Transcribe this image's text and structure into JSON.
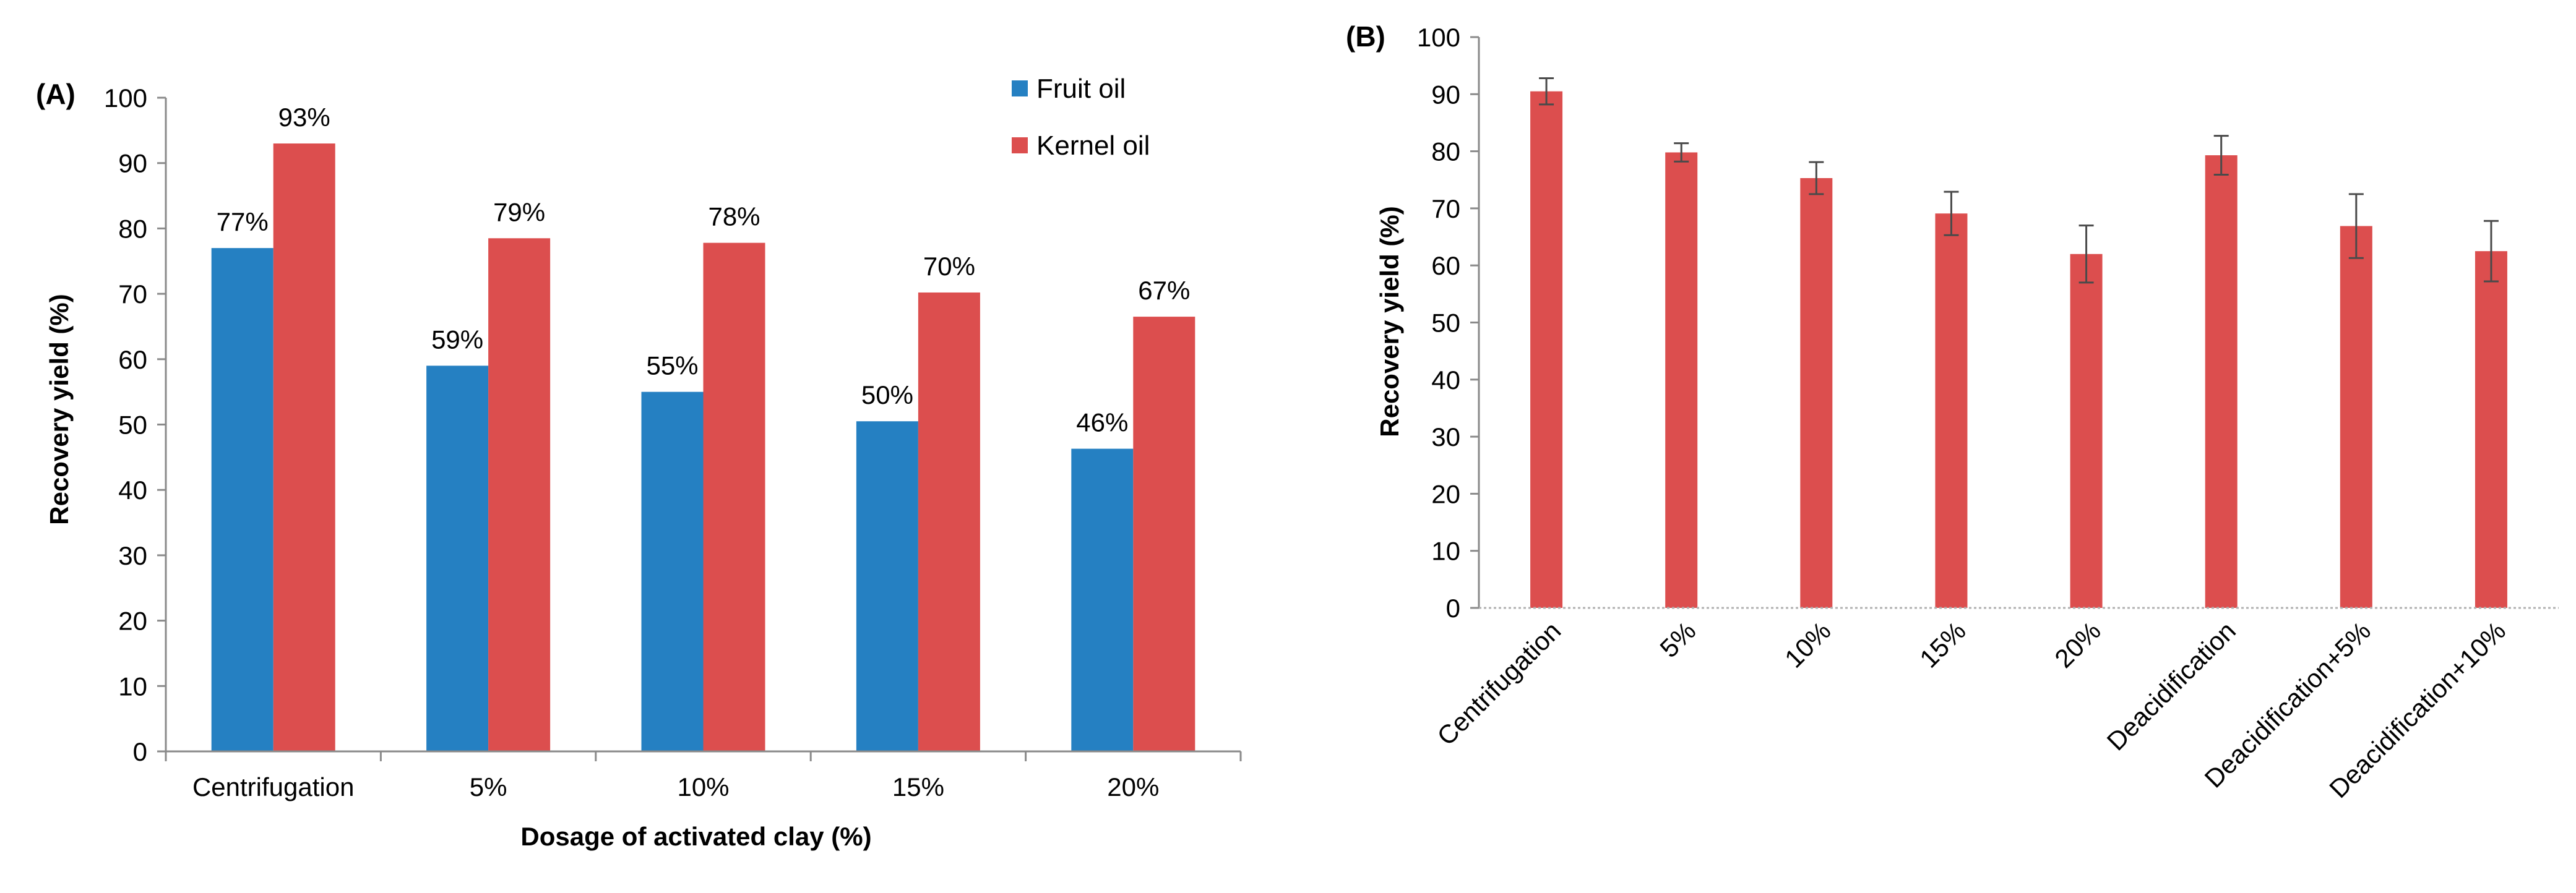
{
  "chart_data": [
    {
      "panel_label": "(A)",
      "type": "bar",
      "categories": [
        "Centrifugation",
        "5%",
        "10%",
        "15%",
        "20%"
      ],
      "series": [
        {
          "name": "Fruit oil",
          "color": "#2580C2",
          "values": [
            77,
            59,
            55,
            50.5,
            46.3
          ],
          "labels": [
            "77%",
            "59%",
            "55%",
            "50%",
            "46%"
          ]
        },
        {
          "name": "Kernel oil",
          "color": "#DC4E4E",
          "values": [
            93,
            78.5,
            77.8,
            70.2,
            66.5
          ],
          "labels": [
            "93%",
            "79%",
            "78%",
            "70%",
            "67%"
          ]
        }
      ],
      "xlabel": "Dosage of activated clay (%)",
      "ylabel": "Recovery yield (%)",
      "ylim": [
        0,
        100
      ],
      "yticks": [
        "0",
        "10",
        "20",
        "30",
        "40",
        "50",
        "60",
        "70",
        "80",
        "90",
        "100"
      ],
      "legend": "top-right",
      "grid": false
    },
    {
      "panel_label": "(B)",
      "type": "bar",
      "categories": [
        "Centrifugation",
        "5%",
        "10%",
        "15%",
        "20%",
        "Deacidification",
        "Deacidification+5%",
        "Deacidification+10%"
      ],
      "series": [
        {
          "name": "Recovery yield",
          "color": "#DC4E4E",
          "values": [
            90.5,
            79.8,
            75.3,
            69.1,
            62,
            79.3,
            66.9,
            62.5
          ],
          "errors": [
            2.3,
            1.6,
            2.8,
            3.8,
            5,
            3.4,
            5.6,
            5.3
          ]
        }
      ],
      "xlabel": "",
      "ylabel": "Recovery yield (%)",
      "ylim": [
        0,
        100
      ],
      "yticks": [
        "0",
        "10",
        "20",
        "30",
        "40",
        "50",
        "60",
        "70",
        "80",
        "90",
        "100"
      ],
      "grid": false
    }
  ]
}
